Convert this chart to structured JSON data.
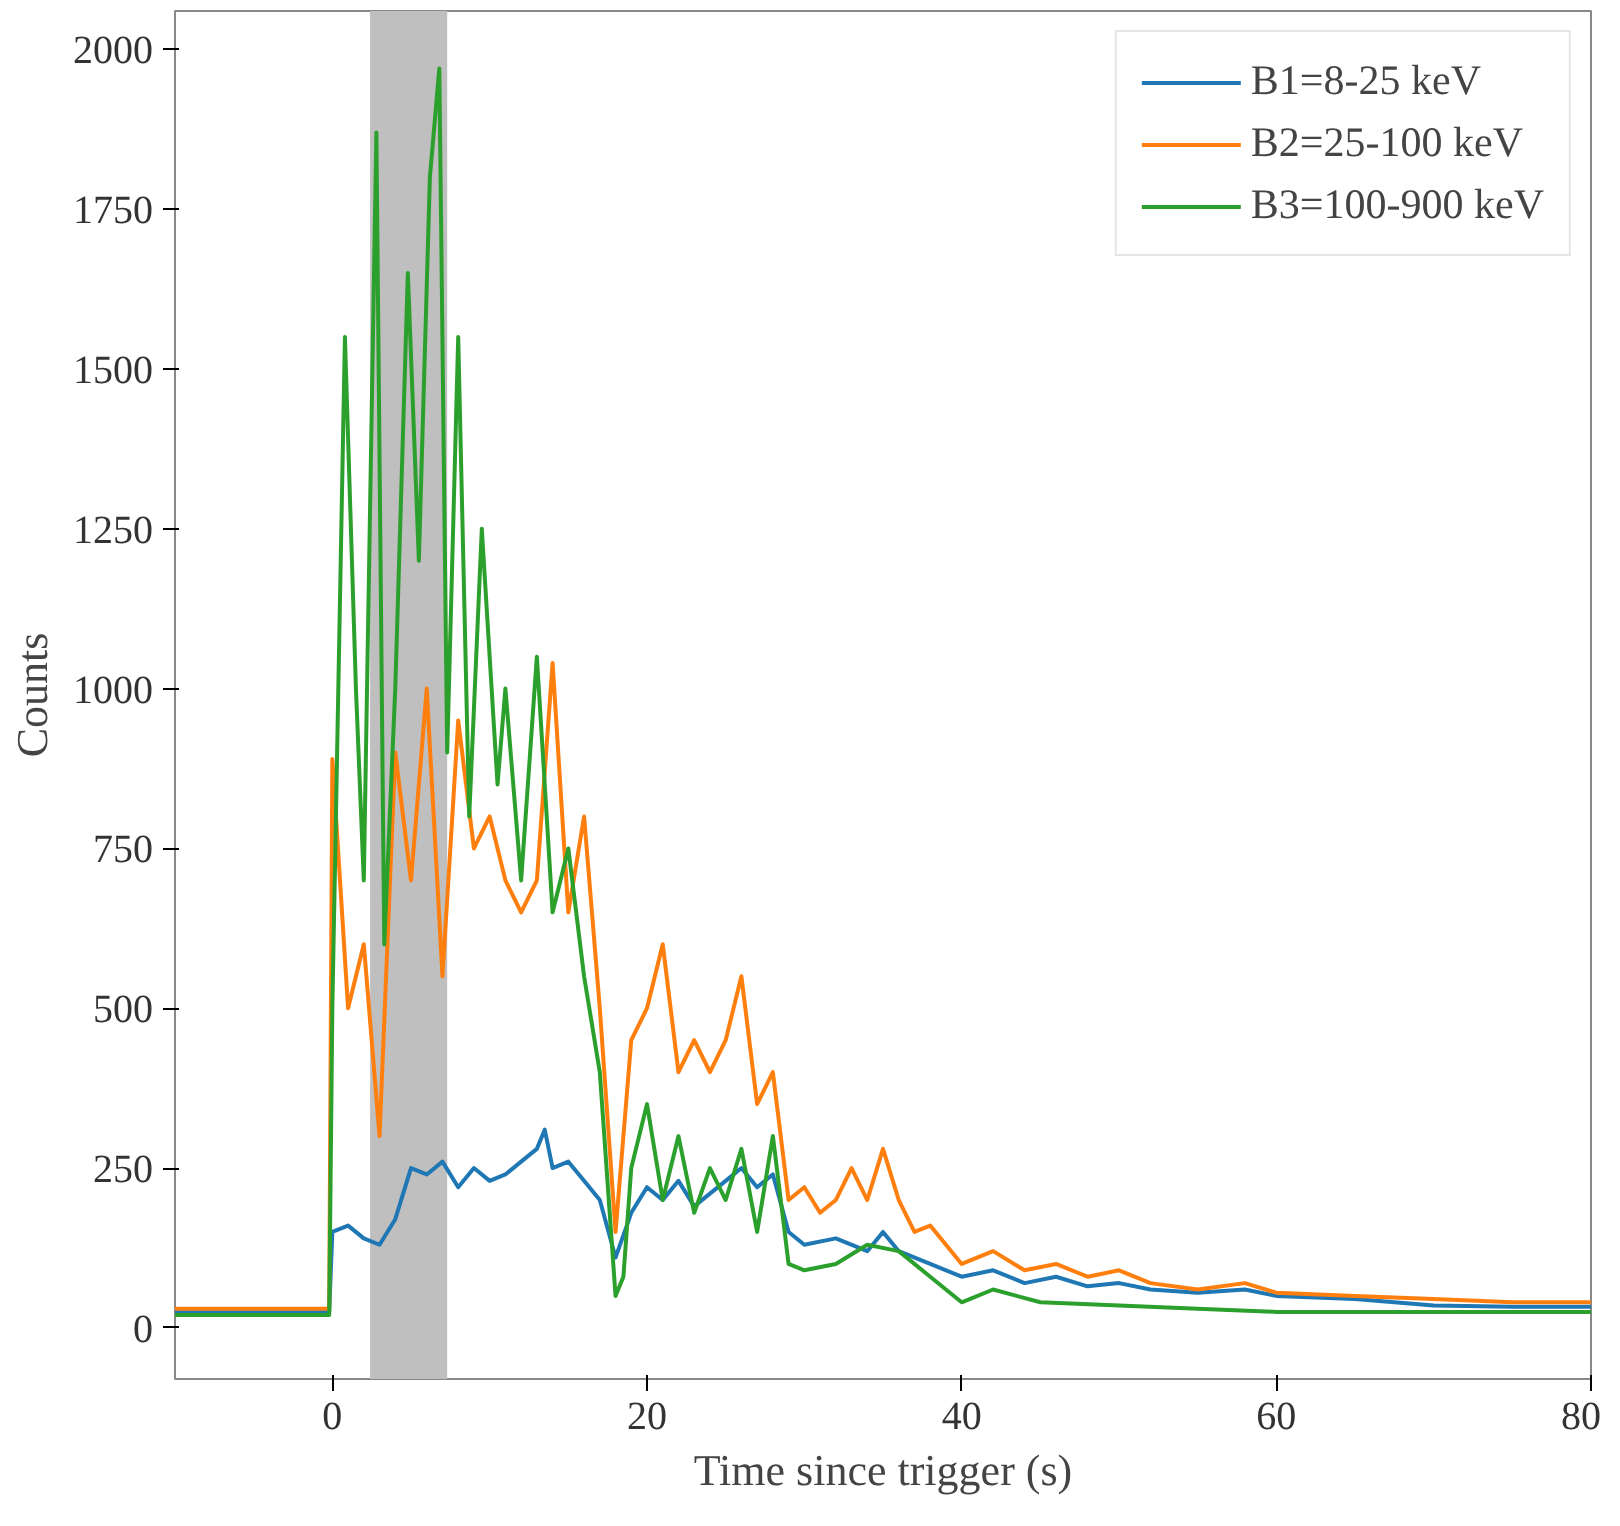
{
  "chart_data": {
    "type": "line",
    "xlabel": "Time since trigger (s)",
    "ylabel": "Counts",
    "xlim": [
      -10,
      80
    ],
    "ylim": [
      -80,
      2060
    ],
    "xticks": [
      0,
      20,
      40,
      60,
      80
    ],
    "yticks": [
      0,
      250,
      500,
      750,
      1000,
      1250,
      1500,
      1750,
      2000
    ],
    "grid": false,
    "legend": "top right",
    "line_style": "solid",
    "marker": "none",
    "bands": [
      {
        "axis": "x",
        "from": 2.4,
        "to": 7.3,
        "color": "#bfbfbf"
      }
    ],
    "series": [
      {
        "name": "B1=8-25 keV",
        "color": "#1f77b4",
        "x": [
          -10,
          -5,
          -0.2,
          0,
          1,
          2,
          3,
          4,
          5,
          6,
          7,
          8,
          9,
          10,
          11,
          12,
          13,
          13.5,
          14,
          15,
          16,
          17,
          18,
          19,
          20,
          21,
          22,
          23,
          24,
          25,
          26,
          27,
          28,
          29,
          30,
          32,
          34,
          35,
          36,
          38,
          40,
          42,
          44,
          46,
          48,
          50,
          52,
          55,
          58,
          60,
          65,
          70,
          75,
          80
        ],
        "values": [
          25,
          25,
          25,
          150,
          160,
          140,
          130,
          170,
          250,
          240,
          260,
          220,
          250,
          230,
          240,
          260,
          280,
          310,
          250,
          260,
          230,
          200,
          110,
          180,
          220,
          200,
          230,
          190,
          210,
          230,
          250,
          220,
          240,
          150,
          130,
          140,
          120,
          150,
          120,
          100,
          80,
          90,
          70,
          80,
          65,
          70,
          60,
          55,
          60,
          50,
          45,
          35,
          33,
          33
        ]
      },
      {
        "name": "B2=25-100 keV",
        "color": "#ff7f0e",
        "x": [
          -10,
          -5,
          -0.2,
          0,
          1,
          2,
          3,
          4,
          5,
          6,
          7,
          8,
          9,
          10,
          11,
          12,
          13,
          14,
          15,
          16,
          17,
          18,
          19,
          20,
          21,
          22,
          23,
          24,
          25,
          26,
          27,
          28,
          29,
          30,
          31,
          32,
          33,
          34,
          35,
          36,
          37,
          38,
          40,
          42,
          44,
          46,
          48,
          50,
          52,
          55,
          58,
          60,
          65,
          70,
          75,
          80
        ],
        "values": [
          30,
          30,
          30,
          890,
          500,
          600,
          300,
          900,
          700,
          1000,
          550,
          950,
          750,
          800,
          700,
          650,
          700,
          1040,
          650,
          800,
          500,
          150,
          450,
          500,
          600,
          400,
          450,
          400,
          450,
          550,
          350,
          400,
          200,
          220,
          180,
          200,
          250,
          200,
          280,
          200,
          150,
          160,
          100,
          120,
          90,
          100,
          80,
          90,
          70,
          60,
          70,
          55,
          50,
          45,
          40,
          40
        ]
      },
      {
        "name": "B3=100-900 keV",
        "color": "#2ca02c",
        "x": [
          -10,
          -5,
          -0.2,
          0,
          0.8,
          1.5,
          2,
          2.8,
          3.3,
          4,
          4.8,
          5.5,
          6.2,
          6.8,
          7.3,
          8,
          8.7,
          9.5,
          10.5,
          11,
          12,
          13,
          14,
          15,
          16,
          17,
          18,
          18.5,
          19,
          20,
          21,
          22,
          23,
          24,
          25,
          26,
          27,
          28,
          29,
          30,
          32,
          34,
          36,
          38,
          40,
          42,
          45,
          50,
          55,
          60,
          70,
          80
        ],
        "values": [
          20,
          20,
          20,
          500,
          1550,
          1000,
          700,
          1870,
          600,
          1000,
          1650,
          1200,
          1800,
          1970,
          900,
          1550,
          800,
          1250,
          850,
          1000,
          700,
          1050,
          650,
          750,
          550,
          400,
          50,
          80,
          250,
          350,
          200,
          300,
          180,
          250,
          200,
          280,
          150,
          300,
          100,
          90,
          100,
          130,
          120,
          80,
          40,
          60,
          40,
          35,
          30,
          25,
          25,
          25
        ]
      }
    ]
  }
}
